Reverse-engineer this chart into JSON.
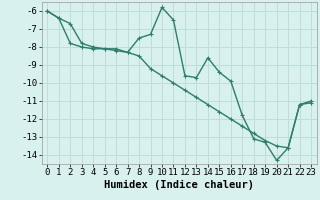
{
  "line1_x": [
    0,
    1,
    2,
    3,
    4,
    5,
    6,
    7,
    8,
    9,
    10,
    11,
    12,
    13,
    14,
    15,
    16,
    17,
    18,
    19,
    20,
    21,
    22,
    23
  ],
  "line1_y": [
    -6.0,
    -6.4,
    -6.7,
    -7.8,
    -8.0,
    -8.1,
    -8.1,
    -8.3,
    -7.5,
    -7.3,
    -5.8,
    -6.5,
    -9.6,
    -9.7,
    -8.6,
    -9.4,
    -9.9,
    -11.8,
    -13.1,
    -13.3,
    -14.3,
    -13.6,
    -11.2,
    -11.1
  ],
  "line2_x": [
    0,
    1,
    2,
    3,
    4,
    5,
    6,
    7,
    8,
    9,
    10,
    11,
    12,
    13,
    14,
    15,
    16,
    17,
    18,
    19,
    20,
    21,
    22,
    23
  ],
  "line2_y": [
    -6.0,
    -6.4,
    -7.8,
    -8.0,
    -8.1,
    -8.1,
    -8.2,
    -8.3,
    -8.5,
    -9.2,
    -9.6,
    -10.0,
    -10.4,
    -10.8,
    -11.2,
    -11.6,
    -12.0,
    -12.4,
    -12.8,
    -13.2,
    -13.5,
    -13.6,
    -11.2,
    -11.0
  ],
  "line_color": "#2e7d6e",
  "bg_color": "#d8f0ee",
  "grid_color": "#b8dbd6",
  "xlabel": "Humidex (Indice chaleur)",
  "ylim": [
    -14.5,
    -5.5
  ],
  "xlim": [
    -0.5,
    23.5
  ],
  "yticks": [
    -6,
    -7,
    -8,
    -9,
    -10,
    -11,
    -12,
    -13,
    -14
  ],
  "xticks": [
    0,
    1,
    2,
    3,
    4,
    5,
    6,
    7,
    8,
    9,
    10,
    11,
    12,
    13,
    14,
    15,
    16,
    17,
    18,
    19,
    20,
    21,
    22,
    23
  ],
  "markersize": 2.5,
  "linewidth": 1.0,
  "font_size": 6.5,
  "xlabel_fontsize": 7.5
}
